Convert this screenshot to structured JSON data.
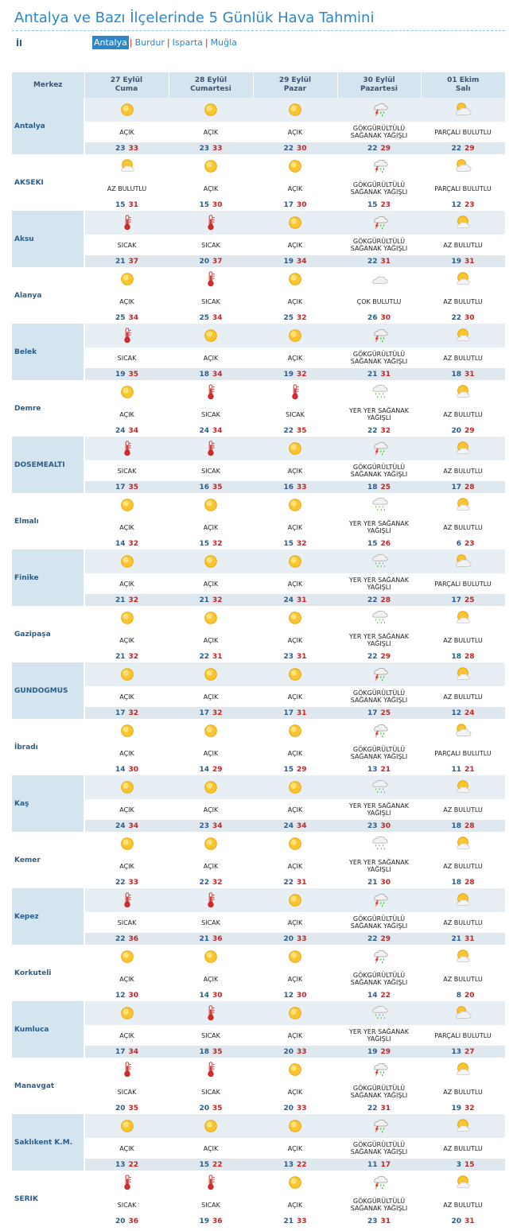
{
  "page": {
    "title": "Antalya ve Bazı İlçelerinde 5 Günlük Hava Tahmini",
    "il_label": "İl",
    "provinces": [
      "Antalya",
      "Burdur",
      "Isparta",
      "Muğla"
    ],
    "active_province": "Antalya"
  },
  "table": {
    "header_label": "Merkez",
    "days": [
      {
        "date": "27 Eylül",
        "day": "Cuma"
      },
      {
        "date": "28 Eylül",
        "day": "Cumartesi"
      },
      {
        "date": "29 Eylül",
        "day": "Pazar"
      },
      {
        "date": "30 Eylül",
        "day": "Pazartesi"
      },
      {
        "date": "01 Ekim",
        "day": "Salı"
      }
    ],
    "conditions": {
      "sunny": "AÇIK",
      "hot": "SICAK",
      "few": "AZ BULUTLU",
      "partly": "PARÇALI BULUTLU",
      "mostly": "ÇOK BULUTLU",
      "thunder": "GÖKGÜRÜLTÜLÜ SAĞANAK YAĞIŞLI",
      "showers": "YER YER SAĞANAK YAĞIŞLI"
    },
    "rows": [
      {
        "city": "Antalya",
        "days": [
          {
            "icon": "sun-icon",
            "cond": "AÇIK",
            "lo": "23",
            "hi": "33"
          },
          {
            "icon": "sun-icon",
            "cond": "AÇIK",
            "lo": "23",
            "hi": "33"
          },
          {
            "icon": "sun-icon",
            "cond": "AÇIK",
            "lo": "22",
            "hi": "30"
          },
          {
            "icon": "thunderstorm-icon",
            "cond": "GÖKGÜRÜLTÜLÜ SAĞANAK YAĞIŞLI",
            "lo": "22",
            "hi": "29"
          },
          {
            "icon": "partly-cloudy-icon",
            "cond": "PARÇALI BULUTLU",
            "lo": "22",
            "hi": "29"
          }
        ]
      },
      {
        "city": "AKSEKI",
        "days": [
          {
            "icon": "few-clouds-icon",
            "cond": "AZ BULUTLU",
            "lo": "15",
            "hi": "31"
          },
          {
            "icon": "sun-icon",
            "cond": "AÇIK",
            "lo": "15",
            "hi": "30"
          },
          {
            "icon": "sun-icon",
            "cond": "AÇIK",
            "lo": "17",
            "hi": "30"
          },
          {
            "icon": "thunderstorm-icon",
            "cond": "GÖKGÜRÜLTÜLÜ SAĞANAK YAĞIŞLI",
            "lo": "15",
            "hi": "23"
          },
          {
            "icon": "partly-cloudy-icon",
            "cond": "PARÇALI BULUTLU",
            "lo": "12",
            "hi": "23"
          }
        ]
      },
      {
        "city": "Aksu",
        "days": [
          {
            "icon": "thermometer-icon",
            "cond": "SICAK",
            "lo": "21",
            "hi": "37"
          },
          {
            "icon": "thermometer-icon",
            "cond": "SICAK",
            "lo": "20",
            "hi": "37"
          },
          {
            "icon": "sun-icon",
            "cond": "AÇIK",
            "lo": "19",
            "hi": "34"
          },
          {
            "icon": "thunderstorm-icon",
            "cond": "GÖKGÜRÜLTÜLÜ SAĞANAK YAĞIŞLI",
            "lo": "22",
            "hi": "31"
          },
          {
            "icon": "few-clouds-icon",
            "cond": "AZ BULUTLU",
            "lo": "19",
            "hi": "31"
          }
        ]
      },
      {
        "city": "Alanya",
        "days": [
          {
            "icon": "sun-icon",
            "cond": "AÇIK",
            "lo": "25",
            "hi": "34"
          },
          {
            "icon": "thermometer-icon",
            "cond": "SICAK",
            "lo": "25",
            "hi": "34"
          },
          {
            "icon": "sun-icon",
            "cond": "AÇIK",
            "lo": "25",
            "hi": "32"
          },
          {
            "icon": "cloudy-icon",
            "cond": "ÇOK BULUTLU",
            "lo": "26",
            "hi": "30"
          },
          {
            "icon": "few-clouds-icon",
            "cond": "AZ BULUTLU",
            "lo": "22",
            "hi": "30"
          }
        ]
      },
      {
        "city": "Belek",
        "days": [
          {
            "icon": "thermometer-icon",
            "cond": "SICAK",
            "lo": "19",
            "hi": "35"
          },
          {
            "icon": "sun-icon",
            "cond": "AÇIK",
            "lo": "18",
            "hi": "34"
          },
          {
            "icon": "sun-icon",
            "cond": "AÇIK",
            "lo": "19",
            "hi": "32"
          },
          {
            "icon": "thunderstorm-icon",
            "cond": "GÖKGÜRÜLTÜLÜ SAĞANAK YAĞIŞLI",
            "lo": "21",
            "hi": "31"
          },
          {
            "icon": "few-clouds-icon",
            "cond": "AZ BULUTLU",
            "lo": "18",
            "hi": "31"
          }
        ]
      },
      {
        "city": "Demre",
        "days": [
          {
            "icon": "sun-icon",
            "cond": "AÇIK",
            "lo": "24",
            "hi": "34"
          },
          {
            "icon": "thermometer-icon",
            "cond": "SICAK",
            "lo": "24",
            "hi": "34"
          },
          {
            "icon": "thermometer-icon",
            "cond": "SICAK",
            "lo": "22",
            "hi": "35"
          },
          {
            "icon": "showers-icon",
            "cond": "YER YER SAĞANAK YAĞIŞLI",
            "lo": "22",
            "hi": "32"
          },
          {
            "icon": "few-clouds-icon",
            "cond": "AZ BULUTLU",
            "lo": "20",
            "hi": "29"
          }
        ]
      },
      {
        "city": "DOSEMEALTI",
        "days": [
          {
            "icon": "thermometer-icon",
            "cond": "SICAK",
            "lo": "17",
            "hi": "35"
          },
          {
            "icon": "thermometer-icon",
            "cond": "SICAK",
            "lo": "16",
            "hi": "35"
          },
          {
            "icon": "sun-icon",
            "cond": "AÇIK",
            "lo": "16",
            "hi": "33"
          },
          {
            "icon": "thunderstorm-icon",
            "cond": "GÖKGÜRÜLTÜLÜ SAĞANAK YAĞIŞLI",
            "lo": "18",
            "hi": "25"
          },
          {
            "icon": "few-clouds-icon",
            "cond": "AZ BULUTLU",
            "lo": "17",
            "hi": "28"
          }
        ]
      },
      {
        "city": "Elmalı",
        "days": [
          {
            "icon": "sun-icon",
            "cond": "AÇIK",
            "lo": "14",
            "hi": "32"
          },
          {
            "icon": "sun-icon",
            "cond": "AÇIK",
            "lo": "15",
            "hi": "32"
          },
          {
            "icon": "sun-icon",
            "cond": "AÇIK",
            "lo": "15",
            "hi": "32"
          },
          {
            "icon": "showers-icon",
            "cond": "YER YER SAĞANAK YAĞIŞLI",
            "lo": "15",
            "hi": "26"
          },
          {
            "icon": "few-clouds-icon",
            "cond": "AZ BULUTLU",
            "lo": "6",
            "hi": "23"
          }
        ]
      },
      {
        "city": "Finike",
        "days": [
          {
            "icon": "sun-icon",
            "cond": "AÇIK",
            "lo": "21",
            "hi": "32"
          },
          {
            "icon": "sun-icon",
            "cond": "AÇIK",
            "lo": "21",
            "hi": "32"
          },
          {
            "icon": "sun-icon",
            "cond": "AÇIK",
            "lo": "24",
            "hi": "31"
          },
          {
            "icon": "showers-icon",
            "cond": "YER YER SAĞANAK YAĞIŞLI",
            "lo": "22",
            "hi": "28"
          },
          {
            "icon": "partly-cloudy-icon",
            "cond": "PARÇALI BULUTLU",
            "lo": "17",
            "hi": "25"
          }
        ]
      },
      {
        "city": "Gazipaşa",
        "days": [
          {
            "icon": "sun-icon",
            "cond": "AÇIK",
            "lo": "21",
            "hi": "32"
          },
          {
            "icon": "sun-icon",
            "cond": "AÇIK",
            "lo": "22",
            "hi": "31"
          },
          {
            "icon": "sun-icon",
            "cond": "AÇIK",
            "lo": "23",
            "hi": "31"
          },
          {
            "icon": "showers-icon",
            "cond": "YER YER SAĞANAK YAĞIŞLI",
            "lo": "22",
            "hi": "29"
          },
          {
            "icon": "few-clouds-icon",
            "cond": "AZ BULUTLU",
            "lo": "18",
            "hi": "28"
          }
        ]
      },
      {
        "city": "GUNDOGMUS",
        "days": [
          {
            "icon": "sun-icon",
            "cond": "AÇIK",
            "lo": "17",
            "hi": "32"
          },
          {
            "icon": "sun-icon",
            "cond": "AÇIK",
            "lo": "17",
            "hi": "32"
          },
          {
            "icon": "sun-icon",
            "cond": "AÇIK",
            "lo": "17",
            "hi": "31"
          },
          {
            "icon": "thunderstorm-icon",
            "cond": "GÖKGÜRÜLTÜLÜ SAĞANAK YAĞIŞLI",
            "lo": "17",
            "hi": "25"
          },
          {
            "icon": "few-clouds-icon",
            "cond": "AZ BULUTLU",
            "lo": "12",
            "hi": "24"
          }
        ]
      },
      {
        "city": "İbradı",
        "days": [
          {
            "icon": "sun-icon",
            "cond": "AÇIK",
            "lo": "14",
            "hi": "30"
          },
          {
            "icon": "sun-icon",
            "cond": "AÇIK",
            "lo": "14",
            "hi": "29"
          },
          {
            "icon": "sun-icon",
            "cond": "AÇIK",
            "lo": "15",
            "hi": "29"
          },
          {
            "icon": "thunderstorm-icon",
            "cond": "GÖKGÜRÜLTÜLÜ SAĞANAK YAĞIŞLI",
            "lo": "13",
            "hi": "21"
          },
          {
            "icon": "partly-cloudy-icon",
            "cond": "PARÇALI BULUTLU",
            "lo": "11",
            "hi": "21"
          }
        ]
      },
      {
        "city": "Kaş",
        "days": [
          {
            "icon": "sun-icon",
            "cond": "AÇIK",
            "lo": "24",
            "hi": "34"
          },
          {
            "icon": "sun-icon",
            "cond": "AÇIK",
            "lo": "23",
            "hi": "34"
          },
          {
            "icon": "sun-icon",
            "cond": "AÇIK",
            "lo": "24",
            "hi": "34"
          },
          {
            "icon": "showers-icon",
            "cond": "YER YER SAĞANAK YAĞIŞLI",
            "lo": "23",
            "hi": "30"
          },
          {
            "icon": "few-clouds-icon",
            "cond": "AZ BULUTLU",
            "lo": "18",
            "hi": "28"
          }
        ]
      },
      {
        "city": "Kemer",
        "days": [
          {
            "icon": "sun-icon",
            "cond": "AÇIK",
            "lo": "22",
            "hi": "33"
          },
          {
            "icon": "sun-icon",
            "cond": "AÇIK",
            "lo": "22",
            "hi": "32"
          },
          {
            "icon": "sun-icon",
            "cond": "AÇIK",
            "lo": "22",
            "hi": "31"
          },
          {
            "icon": "showers-icon",
            "cond": "YER YER SAĞANAK YAĞIŞLI",
            "lo": "21",
            "hi": "30"
          },
          {
            "icon": "few-clouds-icon",
            "cond": "AZ BULUTLU",
            "lo": "18",
            "hi": "28"
          }
        ]
      },
      {
        "city": "Kepez",
        "days": [
          {
            "icon": "thermometer-icon",
            "cond": "SICAK",
            "lo": "22",
            "hi": "36"
          },
          {
            "icon": "thermometer-icon",
            "cond": "SICAK",
            "lo": "21",
            "hi": "36"
          },
          {
            "icon": "sun-icon",
            "cond": "AÇIK",
            "lo": "20",
            "hi": "33"
          },
          {
            "icon": "thunderstorm-icon",
            "cond": "GÖKGÜRÜLTÜLÜ SAĞANAK YAĞIŞLI",
            "lo": "22",
            "hi": "29"
          },
          {
            "icon": "few-clouds-icon",
            "cond": "AZ BULUTLU",
            "lo": "21",
            "hi": "31"
          }
        ]
      },
      {
        "city": "Korkuteli",
        "days": [
          {
            "icon": "sun-icon",
            "cond": "AÇIK",
            "lo": "12",
            "hi": "30"
          },
          {
            "icon": "sun-icon",
            "cond": "AÇIK",
            "lo": "14",
            "hi": "30"
          },
          {
            "icon": "sun-icon",
            "cond": "AÇIK",
            "lo": "12",
            "hi": "30"
          },
          {
            "icon": "thunderstorm-icon",
            "cond": "GÖKGÜRÜLTÜLÜ SAĞANAK YAĞIŞLI",
            "lo": "14",
            "hi": "22"
          },
          {
            "icon": "few-clouds-icon",
            "cond": "AZ BULUTLU",
            "lo": "8",
            "hi": "20"
          }
        ]
      },
      {
        "city": "Kumluca",
        "days": [
          {
            "icon": "sun-icon",
            "cond": "AÇIK",
            "lo": "17",
            "hi": "34"
          },
          {
            "icon": "thermometer-icon",
            "cond": "SICAK",
            "lo": "18",
            "hi": "35"
          },
          {
            "icon": "sun-icon",
            "cond": "AÇIK",
            "lo": "20",
            "hi": "33"
          },
          {
            "icon": "showers-icon",
            "cond": "YER YER SAĞANAK YAĞIŞLI",
            "lo": "19",
            "hi": "29"
          },
          {
            "icon": "partly-cloudy-icon",
            "cond": "PARÇALI BULUTLU",
            "lo": "13",
            "hi": "27"
          }
        ]
      },
      {
        "city": "Manavgat",
        "days": [
          {
            "icon": "thermometer-icon",
            "cond": "SICAK",
            "lo": "20",
            "hi": "35"
          },
          {
            "icon": "thermometer-icon",
            "cond": "SICAK",
            "lo": "20",
            "hi": "35"
          },
          {
            "icon": "sun-icon",
            "cond": "AÇIK",
            "lo": "20",
            "hi": "33"
          },
          {
            "icon": "thunderstorm-icon",
            "cond": "GÖKGÜRÜLTÜLÜ SAĞANAK YAĞIŞLI",
            "lo": "22",
            "hi": "31"
          },
          {
            "icon": "few-clouds-icon",
            "cond": "AZ BULUTLU",
            "lo": "19",
            "hi": "32"
          }
        ]
      },
      {
        "city": "Saklıkent K.M.",
        "days": [
          {
            "icon": "sun-icon",
            "cond": "AÇIK",
            "lo": "13",
            "hi": "22"
          },
          {
            "icon": "sun-icon",
            "cond": "AÇIK",
            "lo": "15",
            "hi": "22"
          },
          {
            "icon": "sun-icon",
            "cond": "AÇIK",
            "lo": "13",
            "hi": "22"
          },
          {
            "icon": "thunderstorm-icon",
            "cond": "GÖKGÜRÜLTÜLÜ SAĞANAK YAĞIŞLI",
            "lo": "11",
            "hi": "17"
          },
          {
            "icon": "few-clouds-icon",
            "cond": "AZ BULUTLU",
            "lo": "3",
            "hi": "15"
          }
        ]
      },
      {
        "city": "SERIK",
        "days": [
          {
            "icon": "thermometer-icon",
            "cond": "SICAK",
            "lo": "20",
            "hi": "36"
          },
          {
            "icon": "thermometer-icon",
            "cond": "SICAK",
            "lo": "19",
            "hi": "36"
          },
          {
            "icon": "sun-icon",
            "cond": "AÇIK",
            "lo": "21",
            "hi": "33"
          },
          {
            "icon": "thunderstorm-icon",
            "cond": "GÖKGÜRÜLTÜLÜ SAĞANAK YAĞIŞLI",
            "lo": "23",
            "hi": "31"
          },
          {
            "icon": "few-clouds-icon",
            "cond": "AZ BULUTLU",
            "lo": "20",
            "hi": "31"
          }
        ]
      }
    ]
  },
  "colors": {
    "title": "#2d86c8",
    "header_bg": "#d5e5f0",
    "low_temp": "#2b5d8c",
    "high_temp": "#c42424",
    "sun": "#f5b800"
  }
}
